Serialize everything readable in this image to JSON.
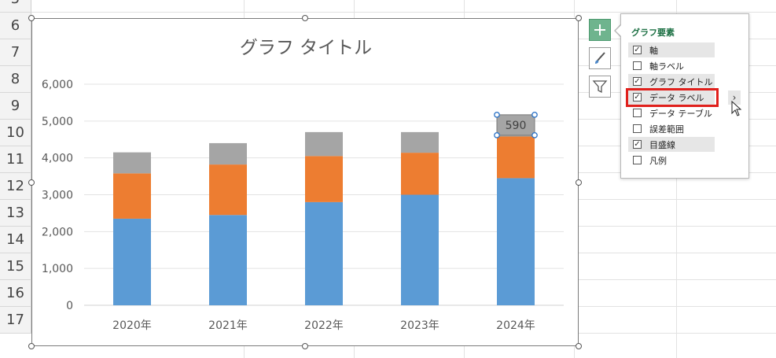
{
  "spreadsheet": {
    "row_numbers": [
      "5",
      "6",
      "7",
      "8",
      "9",
      "10",
      "11",
      "12",
      "13",
      "14",
      "15",
      "16",
      "17"
    ]
  },
  "chart_data": {
    "type": "bar",
    "stacked": true,
    "title": "グラフ タイトル",
    "categories": [
      "2020年",
      "2021年",
      "2022年",
      "2023年",
      "2024年"
    ],
    "series": [
      {
        "color": "#5b9bd5",
        "values": [
          2350,
          2450,
          2800,
          3000,
          3450
        ]
      },
      {
        "color": "#ed7d31",
        "values": [
          1230,
          1370,
          1250,
          1140,
          1130
        ]
      },
      {
        "color": "#a5a5a5",
        "values": [
          570,
          580,
          650,
          560,
          590
        ]
      }
    ],
    "ylim": [
      0,
      6000
    ],
    "yticks": [
      "0",
      "1,000",
      "2,000",
      "3,000",
      "4,000",
      "5,000",
      "6,000"
    ],
    "grid": true,
    "legend": "none",
    "data_label": {
      "series_index": 2,
      "category_index": 4,
      "text": "590"
    }
  },
  "chart_buttons": {
    "add_icon": "plus-icon",
    "style_icon": "paintbrush-icon",
    "filter_icon": "funnel-icon"
  },
  "chart_elements_panel": {
    "title": "グラフ要素",
    "items": [
      {
        "label": "軸",
        "checked": true
      },
      {
        "label": "軸ラベル",
        "checked": false
      },
      {
        "label": "グラフ タイトル",
        "checked": true
      },
      {
        "label": "データ ラベル",
        "checked": true
      },
      {
        "label": "データ テーブル",
        "checked": false
      },
      {
        "label": "誤差範囲",
        "checked": false
      },
      {
        "label": "目盛線",
        "checked": true
      },
      {
        "label": "凡例",
        "checked": false
      }
    ],
    "submenu_arrow": "›",
    "highlight_color": "#e0201c"
  }
}
